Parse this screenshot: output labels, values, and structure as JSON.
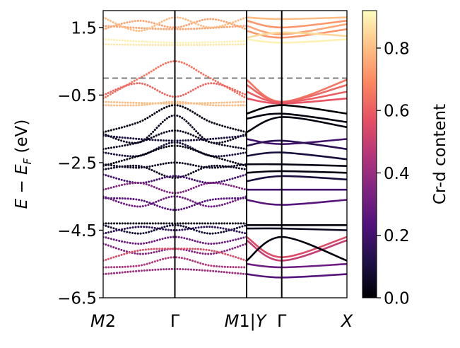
{
  "chart_data": {
    "type": "band-structure",
    "title": "",
    "ylabel": "E − E_F (eV)",
    "ylim": [
      -6.5,
      2.0
    ],
    "yticks": [
      {
        "value": 1.5,
        "label": "1.5"
      },
      {
        "value": -0.5,
        "label": "−0.5"
      },
      {
        "value": -2.5,
        "label": "−2.5"
      },
      {
        "value": -4.5,
        "label": "−4.5"
      },
      {
        "value": -6.5,
        "label": "−6.5"
      }
    ],
    "fermi_level": 0.0,
    "panels": [
      {
        "name": "M2-Γ-M1",
        "x_range": [
          0,
          2
        ],
        "kpoints": [
          {
            "x": 0,
            "label": "M2"
          },
          {
            "x": 1,
            "label": "Γ"
          },
          {
            "x": 2,
            "label": "M1|Y"
          }
        ],
        "style": "dotted"
      },
      {
        "name": "Y-Γ-X",
        "x_range": [
          0,
          2
        ],
        "kpoints": [
          {
            "x": 0.7,
            "label": "Γ"
          },
          {
            "x": 2,
            "label": "X"
          }
        ],
        "style": "solid"
      }
    ],
    "colorbar": {
      "label": "Cr-d content",
      "colormap": "magma",
      "range": [
        0.0,
        0.92
      ],
      "ticks": [
        {
          "value": 0.0,
          "label": "0.0"
        },
        {
          "value": 0.2,
          "label": "0.2"
        },
        {
          "value": 0.4,
          "label": "0.4"
        },
        {
          "value": 0.6,
          "label": "0.6"
        },
        {
          "value": 0.8,
          "label": "0.8"
        }
      ]
    },
    "bands_left": [
      {
        "pts": [
          [
            0,
            1.55
          ],
          [
            1,
            1.45
          ],
          [
            2,
            1.55
          ]
        ],
        "c": 0.75
      },
      {
        "pts": [
          [
            0,
            1.45
          ],
          [
            0.5,
            1.7
          ],
          [
            1,
            1.5
          ],
          [
            1.5,
            1.75
          ],
          [
            2,
            1.45
          ]
        ],
        "c": 0.75
      },
      {
        "pts": [
          [
            0,
            1.8
          ],
          [
            0.5,
            1.4
          ],
          [
            1,
            1.8
          ],
          [
            1.5,
            1.5
          ],
          [
            2,
            1.8
          ]
        ],
        "c": 0.8
      },
      {
        "pts": [
          [
            0,
            1.15
          ],
          [
            1,
            1.05
          ],
          [
            2,
            1.1
          ]
        ],
        "c": 0.9
      },
      {
        "pts": [
          [
            0,
            1.0
          ],
          [
            1,
            0.98
          ],
          [
            2,
            1.0
          ]
        ],
        "c": 0.88
      },
      {
        "pts": [
          [
            0,
            -0.6
          ],
          [
            0.55,
            0.05
          ],
          [
            1,
            0.5
          ],
          [
            1.45,
            0.05
          ],
          [
            2,
            -0.6
          ]
        ],
        "c": 0.65
      },
      {
        "pts": [
          [
            0,
            -0.5
          ],
          [
            0.5,
            -0.15
          ],
          [
            1,
            -0.55
          ],
          [
            1.5,
            -0.15
          ],
          [
            2,
            -0.5
          ]
        ],
        "c": 0.62
      },
      {
        "pts": [
          [
            0,
            -0.7
          ],
          [
            1,
            -0.75
          ],
          [
            2,
            -0.7
          ]
        ],
        "c": 0.8
      },
      {
        "pts": [
          [
            0,
            -0.8
          ],
          [
            0.5,
            -0.8
          ],
          [
            1,
            -0.7
          ],
          [
            1.5,
            -0.8
          ],
          [
            2,
            -0.8
          ]
        ],
        "c": 0.8
      },
      {
        "pts": [
          [
            0,
            -1.6
          ],
          [
            0.5,
            -1.3
          ],
          [
            1,
            -0.8
          ],
          [
            1.5,
            -1.3
          ],
          [
            2,
            -1.6
          ]
        ],
        "c": 0.02
      },
      {
        "pts": [
          [
            0,
            -1.65
          ],
          [
            0.5,
            -1.9
          ],
          [
            1,
            -1.1
          ],
          [
            1.5,
            -1.9
          ],
          [
            2,
            -1.65
          ]
        ],
        "c": 0.05
      },
      {
        "pts": [
          [
            0,
            -1.7
          ],
          [
            0.5,
            -1.8
          ],
          [
            1,
            -1.85
          ],
          [
            1.5,
            -1.8
          ],
          [
            2,
            -1.7
          ]
        ],
        "c": 0.1
      },
      {
        "pts": [
          [
            0,
            -2.1
          ],
          [
            0.5,
            -1.9
          ],
          [
            1,
            -1.55
          ],
          [
            1.5,
            -1.9
          ],
          [
            2,
            -2.1
          ]
        ],
        "c": 0.05
      },
      {
        "pts": [
          [
            0,
            -2.2
          ],
          [
            0.5,
            -2.3
          ],
          [
            1,
            -1.9
          ],
          [
            1.5,
            -2.3
          ],
          [
            2,
            -2.2
          ]
        ],
        "c": 0.1
      },
      {
        "pts": [
          [
            0,
            -2.6
          ],
          [
            0.5,
            -2.3
          ],
          [
            1,
            -2.0
          ],
          [
            1.5,
            -2.3
          ],
          [
            2,
            -2.6
          ]
        ],
        "c": 0.02
      },
      {
        "pts": [
          [
            0,
            -2.55
          ],
          [
            0.5,
            -2.65
          ],
          [
            1,
            -2.5
          ],
          [
            1.5,
            -2.65
          ],
          [
            2,
            -2.55
          ]
        ],
        "c": 0.05
      },
      {
        "pts": [
          [
            0,
            -2.7
          ],
          [
            0.5,
            -2.6
          ],
          [
            1,
            -2.95
          ],
          [
            1.5,
            -2.6
          ],
          [
            2,
            -2.7
          ]
        ],
        "c": 0.05
      },
      {
        "pts": [
          [
            0,
            -2.85
          ],
          [
            0.5,
            -3.1
          ],
          [
            1,
            -2.9
          ],
          [
            1.5,
            -3.1
          ],
          [
            2,
            -2.85
          ]
        ],
        "c": 0.2
      },
      {
        "pts": [
          [
            0,
            -3.3
          ],
          [
            0.5,
            -3.1
          ],
          [
            1,
            -3.4
          ],
          [
            1.5,
            -3.1
          ],
          [
            2,
            -3.3
          ]
        ],
        "c": 0.35
      },
      {
        "pts": [
          [
            0,
            -3.5
          ],
          [
            0.5,
            -3.8
          ],
          [
            1,
            -3.5
          ],
          [
            1.5,
            -3.8
          ],
          [
            2,
            -3.5
          ]
        ],
        "c": 0.3
      },
      {
        "pts": [
          [
            0,
            -3.55
          ],
          [
            0.5,
            -3.6
          ],
          [
            1,
            -3.9
          ],
          [
            1.5,
            -3.6
          ],
          [
            2,
            -3.55
          ]
        ],
        "c": 0.25
      },
      {
        "pts": [
          [
            0,
            -4.3
          ],
          [
            1,
            -4.3
          ],
          [
            2,
            -4.3
          ]
        ],
        "c": 0.02
      },
      {
        "pts": [
          [
            0,
            -4.35
          ],
          [
            0.5,
            -4.6
          ],
          [
            1,
            -4.35
          ],
          [
            1.5,
            -4.6
          ],
          [
            2,
            -4.35
          ]
        ],
        "c": 0.08
      },
      {
        "pts": [
          [
            0,
            -4.6
          ],
          [
            0.5,
            -4.4
          ],
          [
            1,
            -4.5
          ],
          [
            1.5,
            -4.4
          ],
          [
            2,
            -4.6
          ]
        ],
        "c": 0.15
      },
      {
        "pts": [
          [
            0,
            -4.7
          ],
          [
            0.5,
            -4.9
          ],
          [
            1,
            -4.7
          ],
          [
            1.5,
            -4.9
          ],
          [
            2,
            -4.7
          ]
        ],
        "c": 0.3
      },
      {
        "pts": [
          [
            0,
            -4.9
          ],
          [
            0.5,
            -5.2
          ],
          [
            1,
            -5.05
          ],
          [
            1.5,
            -5.2
          ],
          [
            2,
            -4.9
          ]
        ],
        "c": 0.35
      },
      {
        "pts": [
          [
            0,
            -5.4
          ],
          [
            0.5,
            -5.1
          ],
          [
            1,
            -5.05
          ],
          [
            1.5,
            -5.1
          ],
          [
            2,
            -5.4
          ]
        ],
        "c": 0.55
      },
      {
        "pts": [
          [
            0,
            -5.6
          ],
          [
            0.5,
            -5.55
          ],
          [
            1,
            -5.3
          ],
          [
            1.5,
            -5.55
          ],
          [
            2,
            -5.6
          ]
        ],
        "c": 0.45
      },
      {
        "pts": [
          [
            0,
            -5.8
          ],
          [
            1,
            -5.65
          ],
          [
            2,
            -5.8
          ]
        ],
        "c": 0.4
      }
    ],
    "bands_right": [
      {
        "pts": [
          [
            0,
            1.8
          ],
          [
            0.7,
            1.75
          ],
          [
            2,
            1.8
          ]
        ],
        "c": 0.8
      },
      {
        "pts": [
          [
            0,
            1.7
          ],
          [
            0.7,
            1.5
          ],
          [
            2,
            1.7
          ]
        ],
        "c": 0.72
      },
      {
        "pts": [
          [
            0,
            1.55
          ],
          [
            0.7,
            1.3
          ],
          [
            2,
            1.6
          ]
        ],
        "c": 0.75
      },
      {
        "pts": [
          [
            0,
            1.4
          ],
          [
            0.7,
            1.2
          ],
          [
            2,
            1.45
          ]
        ],
        "c": 0.72
      },
      {
        "pts": [
          [
            0,
            1.2
          ],
          [
            0.7,
            1.35
          ],
          [
            2,
            1.25
          ]
        ],
        "c": 0.85
      },
      {
        "pts": [
          [
            0,
            1.15
          ],
          [
            0.7,
            1.05
          ],
          [
            2,
            1.15
          ]
        ],
        "c": 0.9
      },
      {
        "pts": [
          [
            0,
            -0.05
          ],
          [
            0.7,
            -0.7
          ],
          [
            2,
            -0.05
          ]
        ],
        "c": 0.65
      },
      {
        "pts": [
          [
            0,
            -0.2
          ],
          [
            0.7,
            -0.7
          ],
          [
            2,
            -0.2
          ]
        ],
        "c": 0.62
      },
      {
        "pts": [
          [
            0,
            -0.4
          ],
          [
            0.7,
            -0.72
          ],
          [
            2,
            -0.4
          ]
        ],
        "c": 0.6
      },
      {
        "pts": [
          [
            0,
            -0.6
          ],
          [
            0.7,
            -0.75
          ],
          [
            2,
            -0.6
          ]
        ],
        "c": 0.58
      },
      {
        "pts": [
          [
            0,
            -1.05
          ],
          [
            0.7,
            -0.8
          ],
          [
            2,
            -1.05
          ]
        ],
        "c": 0.0
      },
      {
        "pts": [
          [
            0,
            -1.2
          ],
          [
            0.7,
            -1.05
          ],
          [
            2,
            -1.3
          ]
        ],
        "c": 0.02
      },
      {
        "pts": [
          [
            0,
            -1.6
          ],
          [
            0.7,
            -1.15
          ],
          [
            2,
            -1.45
          ]
        ],
        "c": 0.02
      },
      {
        "pts": [
          [
            0,
            -1.8
          ],
          [
            0.7,
            -1.95
          ],
          [
            2,
            -1.8
          ]
        ],
        "c": 0.2
      },
      {
        "pts": [
          [
            0,
            -2.0
          ],
          [
            0.7,
            -1.85
          ],
          [
            2,
            -2.1
          ]
        ],
        "c": 0.15
      },
      {
        "pts": [
          [
            0,
            -2.3
          ],
          [
            0.7,
            -2.2
          ],
          [
            2,
            -2.4
          ]
        ],
        "c": 0.1
      },
      {
        "pts": [
          [
            0,
            -2.55
          ],
          [
            0.7,
            -2.55
          ],
          [
            2,
            -2.6
          ]
        ],
        "c": 0.03
      },
      {
        "pts": [
          [
            0,
            -2.8
          ],
          [
            0.7,
            -2.75
          ],
          [
            2,
            -2.8
          ]
        ],
        "c": 0.02
      },
      {
        "pts": [
          [
            0,
            -3.05
          ],
          [
            0.7,
            -2.9
          ],
          [
            2,
            -3.0
          ]
        ],
        "c": 0.1
      },
      {
        "pts": [
          [
            0,
            -3.3
          ],
          [
            0.7,
            -3.3
          ],
          [
            2,
            -3.3
          ]
        ],
        "c": 0.2
      },
      {
        "pts": [
          [
            0,
            -3.6
          ],
          [
            0.7,
            -3.75
          ],
          [
            2,
            -3.6
          ]
        ],
        "c": 0.25
      },
      {
        "pts": [
          [
            0,
            -4.35
          ],
          [
            0.7,
            -4.35
          ],
          [
            2,
            -4.35
          ]
        ],
        "c": 0.02
      },
      {
        "pts": [
          [
            0,
            -4.45
          ],
          [
            0.7,
            -4.45
          ],
          [
            2,
            -4.5
          ]
        ],
        "c": 0.05
      },
      {
        "pts": [
          [
            0,
            -4.7
          ],
          [
            0.7,
            -5.3
          ],
          [
            2,
            -4.7
          ]
        ],
        "c": 0.55
      },
      {
        "pts": [
          [
            0,
            -4.8
          ],
          [
            0.7,
            -5.4
          ],
          [
            2,
            -4.8
          ]
        ],
        "c": 0.5
      },
      {
        "pts": [
          [
            0,
            -5.4
          ],
          [
            0.7,
            -4.7
          ],
          [
            2,
            -5.4
          ]
        ],
        "c": 0.02
      },
      {
        "pts": [
          [
            0,
            -5.5
          ],
          [
            0.7,
            -5.6
          ],
          [
            2,
            -5.5
          ]
        ],
        "c": 0.3
      },
      {
        "pts": [
          [
            0,
            -5.8
          ],
          [
            0.7,
            -5.9
          ],
          [
            2,
            -5.8
          ]
        ],
        "c": 0.25
      }
    ]
  }
}
